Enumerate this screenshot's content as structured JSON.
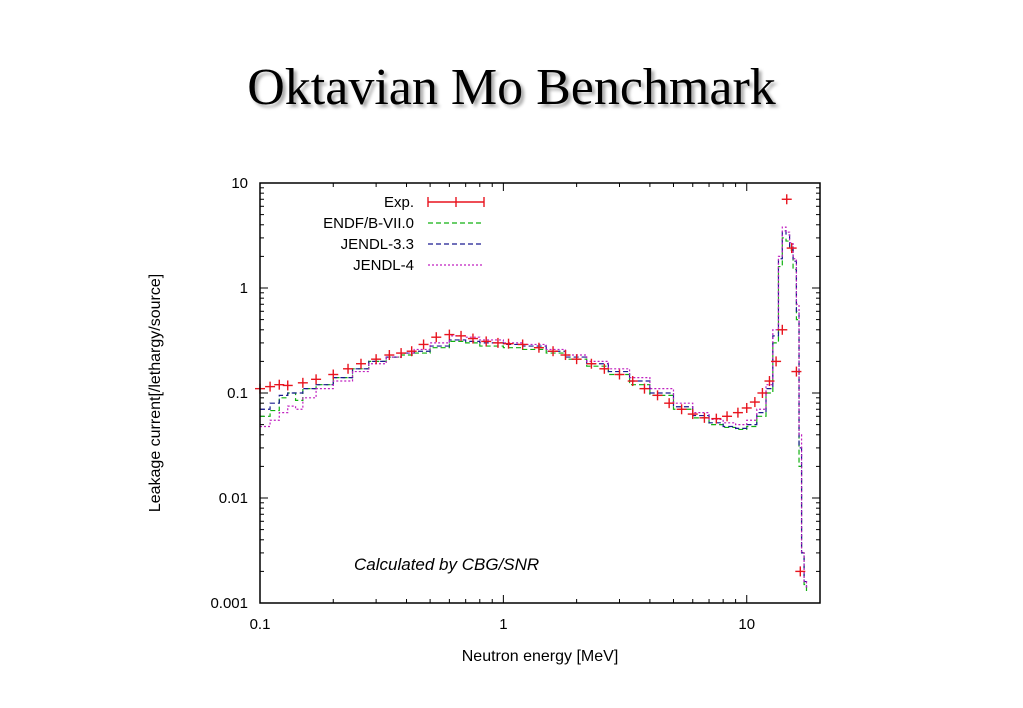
{
  "slide": {
    "title": "Oktavian Mo Benchmark"
  },
  "chart_data": {
    "type": "line",
    "xlabel": "Neutron energy [MeV]",
    "ylabel": "Leakage current[/lethargy/source]",
    "xscale": "log",
    "yscale": "log",
    "xlim": [
      0.1,
      20
    ],
    "ylim": [
      0.001,
      10
    ],
    "xticks": [
      "0.1",
      "1",
      "10"
    ],
    "yticks": [
      "10",
      "1",
      "0.1",
      "0.01",
      "0.001"
    ],
    "legend_position": "top-left",
    "annotation": "Calculated by CBG/SNR",
    "series": [
      {
        "name": "Exp.",
        "style": "points-with-errorbars",
        "color": "#e8141e",
        "x": [
          0.1,
          0.11,
          0.12,
          0.13,
          0.15,
          0.17,
          0.2,
          0.23,
          0.26,
          0.3,
          0.34,
          0.38,
          0.42,
          0.47,
          0.53,
          0.6,
          0.67,
          0.75,
          0.85,
          0.95,
          1.05,
          1.2,
          1.4,
          1.6,
          1.8,
          2.0,
          2.3,
          2.6,
          3.0,
          3.4,
          3.8,
          4.3,
          4.8,
          5.4,
          6.0,
          6.7,
          7.5,
          8.3,
          9.2,
          10.0,
          10.8,
          11.6,
          12.4,
          13.2,
          14.0,
          14.6,
          15.3,
          16.0,
          16.6
        ],
        "y": [
          0.11,
          0.115,
          0.12,
          0.118,
          0.125,
          0.135,
          0.15,
          0.17,
          0.19,
          0.21,
          0.23,
          0.24,
          0.25,
          0.29,
          0.34,
          0.36,
          0.35,
          0.33,
          0.31,
          0.3,
          0.295,
          0.29,
          0.27,
          0.25,
          0.23,
          0.21,
          0.19,
          0.17,
          0.15,
          0.13,
          0.11,
          0.095,
          0.08,
          0.07,
          0.063,
          0.058,
          0.057,
          0.06,
          0.065,
          0.072,
          0.082,
          0.1,
          0.13,
          0.2,
          0.4,
          7.0,
          2.4,
          0.16,
          0.002
        ]
      },
      {
        "name": "ENDF/B-VII.0",
        "style": "dashed",
        "color": "#10b010",
        "x": [
          0.1,
          0.11,
          0.12,
          0.13,
          0.14,
          0.15,
          0.17,
          0.2,
          0.24,
          0.28,
          0.33,
          0.38,
          0.43,
          0.5,
          0.6,
          0.7,
          0.8,
          1.0,
          1.2,
          1.5,
          1.8,
          2.2,
          2.7,
          3.3,
          4.0,
          5.0,
          6.0,
          7.0,
          8.0,
          9.0,
          10.0,
          11.0,
          12.0,
          12.8,
          13.5,
          14.0,
          14.5,
          15.0,
          15.5,
          16.0,
          16.4,
          16.8,
          17.2,
          17.6
        ],
        "y": [
          0.06,
          0.068,
          0.09,
          0.1,
          0.085,
          0.11,
          0.12,
          0.14,
          0.17,
          0.2,
          0.22,
          0.23,
          0.24,
          0.27,
          0.31,
          0.3,
          0.28,
          0.27,
          0.26,
          0.24,
          0.21,
          0.18,
          0.15,
          0.12,
          0.095,
          0.07,
          0.058,
          0.05,
          0.047,
          0.045,
          0.048,
          0.06,
          0.1,
          0.3,
          1.6,
          3.0,
          2.8,
          2.3,
          1.5,
          0.5,
          0.02,
          0.003,
          0.0015,
          0.0013
        ]
      },
      {
        "name": "JENDL-3.3",
        "style": "dashed",
        "color": "#1a1a90",
        "x": [
          0.1,
          0.11,
          0.12,
          0.13,
          0.14,
          0.15,
          0.17,
          0.2,
          0.24,
          0.28,
          0.33,
          0.38,
          0.43,
          0.5,
          0.6,
          0.7,
          0.8,
          1.0,
          1.2,
          1.5,
          1.8,
          2.2,
          2.7,
          3.3,
          4.0,
          5.0,
          6.0,
          7.0,
          8.0,
          9.0,
          10.0,
          11.0,
          12.0,
          12.8,
          13.5,
          14.0,
          14.5,
          15.0,
          15.5,
          16.0,
          16.4,
          16.8,
          17.2,
          17.6
        ],
        "y": [
          0.07,
          0.08,
          0.095,
          0.1,
          0.1,
          0.11,
          0.12,
          0.14,
          0.17,
          0.2,
          0.22,
          0.24,
          0.25,
          0.28,
          0.32,
          0.31,
          0.3,
          0.29,
          0.28,
          0.25,
          0.22,
          0.19,
          0.16,
          0.13,
          0.1,
          0.074,
          0.061,
          0.052,
          0.048,
          0.046,
          0.05,
          0.065,
          0.11,
          0.35,
          1.9,
          3.5,
          3.2,
          2.5,
          1.8,
          0.6,
          0.03,
          0.003,
          0.0016,
          0.0014
        ]
      },
      {
        "name": "JENDL-4",
        "style": "dotted",
        "color": "#c020c0",
        "x": [
          0.1,
          0.11,
          0.12,
          0.13,
          0.14,
          0.15,
          0.17,
          0.2,
          0.24,
          0.28,
          0.33,
          0.38,
          0.43,
          0.5,
          0.6,
          0.7,
          0.8,
          1.0,
          1.2,
          1.5,
          1.8,
          2.2,
          2.7,
          3.3,
          4.0,
          5.0,
          6.0,
          7.0,
          8.0,
          9.0,
          10.0,
          11.0,
          12.0,
          12.8,
          13.5,
          14.0,
          14.5,
          15.0,
          15.5,
          16.0,
          16.4,
          16.8,
          17.2,
          17.6
        ],
        "y": [
          0.048,
          0.055,
          0.065,
          0.075,
          0.07,
          0.09,
          0.11,
          0.13,
          0.16,
          0.19,
          0.22,
          0.24,
          0.26,
          0.3,
          0.35,
          0.34,
          0.32,
          0.3,
          0.29,
          0.26,
          0.23,
          0.2,
          0.17,
          0.14,
          0.11,
          0.08,
          0.065,
          0.056,
          0.052,
          0.05,
          0.055,
          0.07,
          0.12,
          0.4,
          2.0,
          3.8,
          3.4,
          2.7,
          1.9,
          0.7,
          0.04,
          0.003,
          0.0016,
          0.0014
        ]
      }
    ]
  }
}
